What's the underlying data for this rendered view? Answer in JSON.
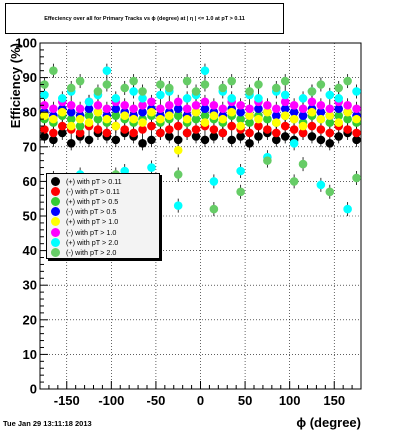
{
  "header": {
    "title": "Effeciency over all for Primary Tracks vs ϕ (degree) at | η | <= 1.0 at pT > 0.11"
  },
  "footer": {
    "timestamp": "Tue Jan 29 13:11:18 2013"
  },
  "chart_data": {
    "type": "scatter",
    "title": "Effeciency over all for Primary Tracks vs ϕ (degree) at | η | <= 1.0 at pT > 0.11",
    "xlabel": "ϕ (degree)",
    "ylabel": "Efficiency (%)",
    "xlim": [
      -180,
      180
    ],
    "ylim": [
      0,
      100
    ],
    "xticks": [
      -150,
      -100,
      -50,
      0,
      50,
      100,
      150
    ],
    "yticks": [
      0,
      10,
      20,
      30,
      40,
      50,
      60,
      70,
      80,
      90,
      100
    ],
    "grid": true,
    "legend_position": "middle-left",
    "x": [
      -175,
      -165,
      -155,
      -145,
      -135,
      -125,
      -115,
      -105,
      -95,
      -85,
      -75,
      -65,
      -55,
      -45,
      -35,
      -25,
      -15,
      -5,
      5,
      15,
      25,
      35,
      45,
      55,
      65,
      75,
      85,
      95,
      105,
      115,
      125,
      135,
      145,
      155,
      165,
      175
    ],
    "series": [
      {
        "name": "(+) with pT > 0.11",
        "color": "#000000",
        "values": [
          73,
          72,
          74,
          71,
          73,
          72,
          74,
          73,
          72,
          74,
          73,
          71,
          72,
          74,
          73,
          72,
          74,
          73,
          72,
          73,
          74,
          72,
          73,
          71,
          73,
          74,
          72,
          73,
          72,
          74,
          73,
          72,
          71,
          73,
          74,
          72
        ]
      },
      {
        "name": "(-) with pT > 0.11",
        "color": "#ff0000",
        "values": [
          75,
          74,
          76,
          75,
          74,
          76,
          75,
          74,
          76,
          75,
          74,
          75,
          76,
          74,
          75,
          76,
          74,
          75,
          76,
          75,
          74,
          76,
          75,
          74,
          76,
          75,
          74,
          76,
          75,
          74,
          76,
          75,
          74,
          76,
          75,
          74
        ]
      },
      {
        "name": "(+) with pT > 0.5",
        "color": "#33cc33",
        "values": [
          78,
          77,
          79,
          78,
          76,
          79,
          78,
          77,
          79,
          78,
          77,
          78,
          79,
          77,
          78,
          79,
          77,
          78,
          79,
          78,
          77,
          79,
          78,
          77,
          79,
          78,
          77,
          79,
          78,
          77,
          79,
          78,
          77,
          79,
          78,
          77
        ]
      },
      {
        "name": "(-) with pT > 0.5",
        "color": "#0000ff",
        "values": [
          80,
          79,
          81,
          80,
          79,
          81,
          80,
          79,
          81,
          80,
          79,
          80,
          81,
          79,
          80,
          81,
          79,
          80,
          81,
          80,
          79,
          81,
          80,
          79,
          81,
          80,
          79,
          81,
          80,
          79,
          81,
          80,
          79,
          81,
          80,
          79
        ]
      },
      {
        "name": "(+) with pT > 1.0",
        "color": "#ffff00",
        "values": [
          79,
          78,
          80,
          76,
          78,
          77,
          80,
          78,
          76,
          79,
          78,
          77,
          80,
          78,
          79,
          69,
          78,
          80,
          77,
          79,
          78,
          80,
          76,
          79,
          78,
          80,
          77,
          79,
          78,
          76,
          80,
          78,
          79,
          77,
          80,
          78
        ]
      },
      {
        "name": "(-) with pT > 1.0",
        "color": "#ff00ff",
        "values": [
          82,
          81,
          83,
          82,
          81,
          83,
          82,
          81,
          83,
          82,
          81,
          82,
          83,
          81,
          82,
          83,
          81,
          82,
          83,
          82,
          81,
          83,
          82,
          81,
          83,
          82,
          81,
          83,
          82,
          81,
          83,
          82,
          81,
          83,
          82,
          81
        ]
      },
      {
        "name": "(+) with pT > 2.0",
        "color": "#00ffff",
        "values": [
          85,
          61,
          84,
          86,
          62,
          83,
          85,
          92,
          84,
          63,
          86,
          84,
          64,
          85,
          86,
          53,
          84,
          85,
          92,
          60,
          86,
          84,
          63,
          85,
          84,
          67,
          86,
          85,
          71,
          84,
          86,
          59,
          85,
          84,
          52,
          86
        ]
      },
      {
        "name": "(-) with pT > 2.0",
        "color": "#66cc66",
        "values": [
          88,
          92,
          60,
          87,
          89,
          56,
          86,
          88,
          62,
          87,
          89,
          86,
          56,
          88,
          87,
          62,
          89,
          86,
          88,
          52,
          87,
          89,
          57,
          86,
          88,
          66,
          87,
          89,
          60,
          65,
          86,
          88,
          57,
          87,
          89,
          61
        ]
      }
    ]
  }
}
